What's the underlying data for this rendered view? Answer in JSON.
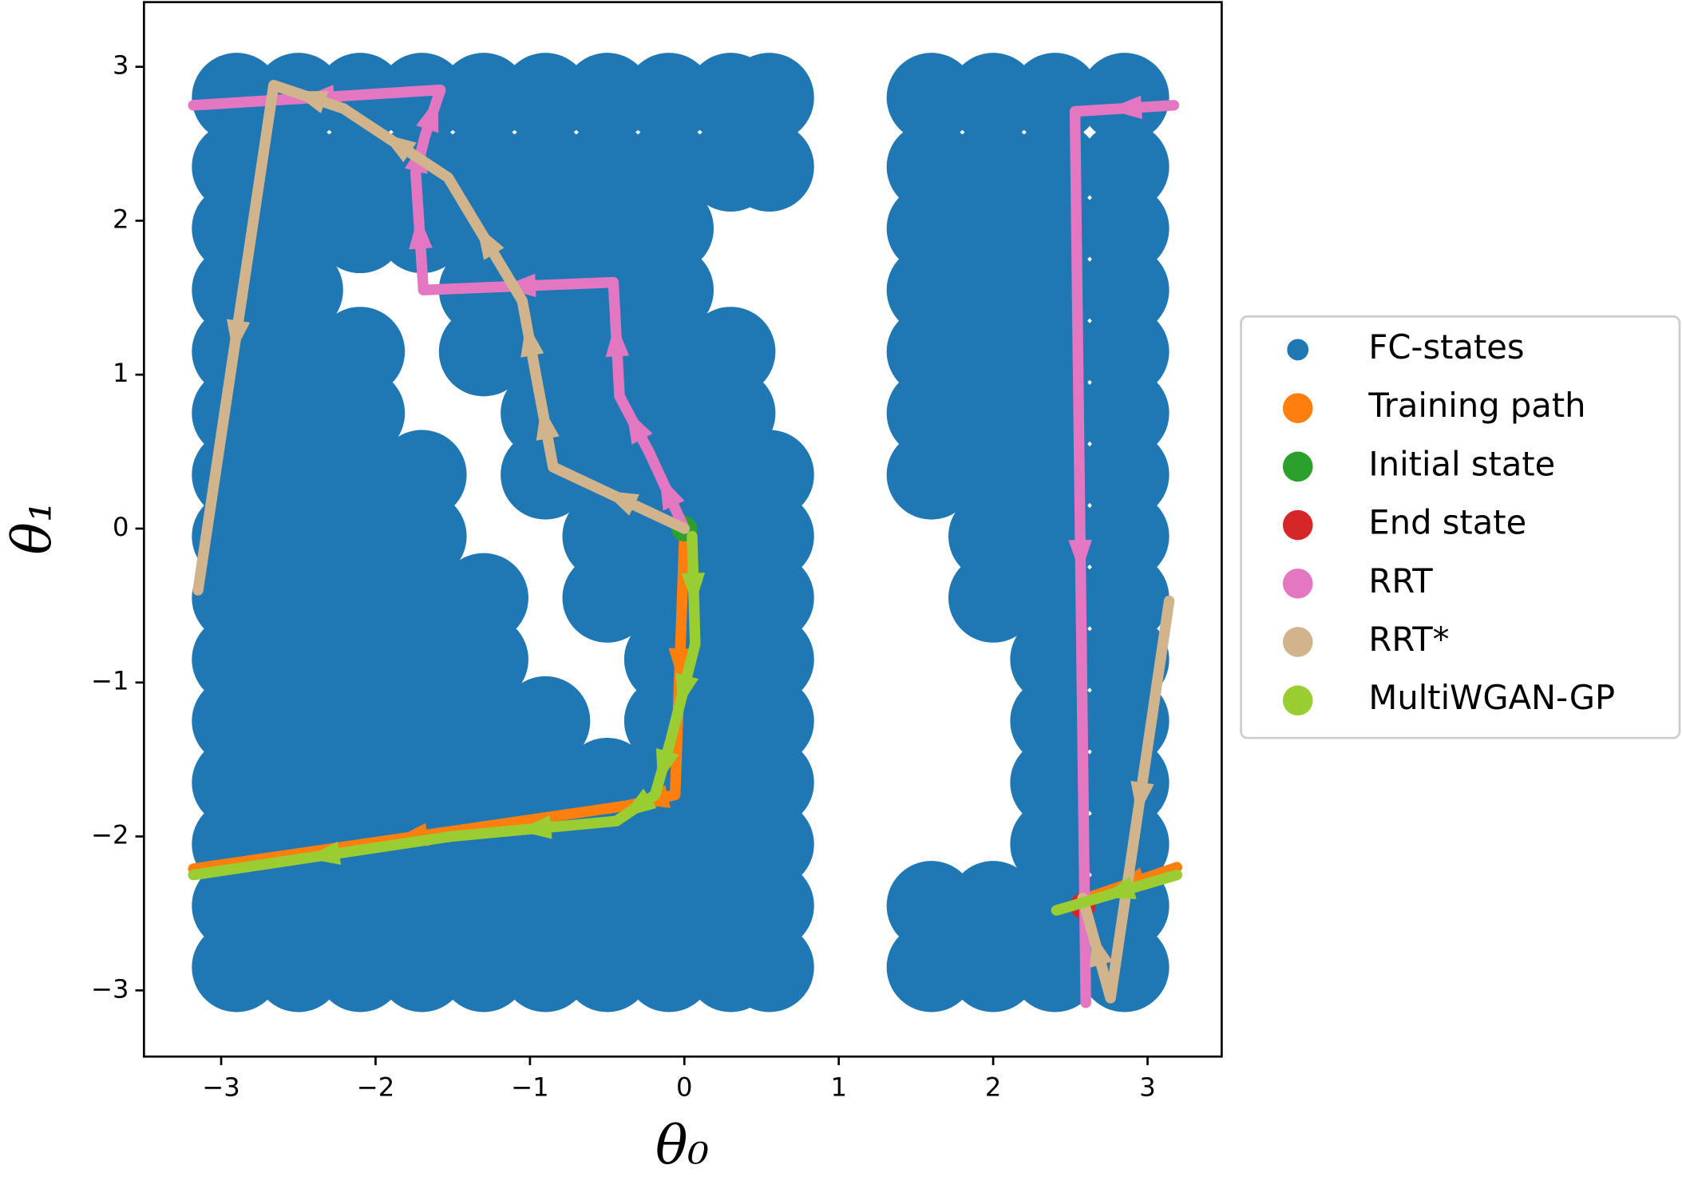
{
  "chart_data": {
    "type": "scatter",
    "xlabel": "θ₀",
    "ylabel": "θ₁",
    "xlim": [
      -3.5,
      3.48
    ],
    "ylim": [
      -3.43,
      3.42
    ],
    "xticks": [
      {
        "value": -3,
        "label": "−3"
      },
      {
        "value": -2,
        "label": "−2"
      },
      {
        "value": -1,
        "label": "−1"
      },
      0,
      1,
      2,
      3
    ],
    "yticks": [
      {
        "value": -3,
        "label": "−3"
      },
      {
        "value": -2,
        "label": "−2"
      },
      {
        "value": -1,
        "label": "−1"
      },
      0,
      1,
      2,
      3
    ],
    "grid": false,
    "legend": "outside right",
    "series": [
      {
        "name": "FC-states",
        "color": "#1f77b4",
        "mode": "markers",
        "x": [
          -2.9,
          -2.5,
          -2.1,
          -1.7,
          -1.3,
          -0.9,
          -0.5,
          -0.1,
          0.3,
          0.55,
          1.6,
          2.0,
          2.4,
          2.85,
          -2.9,
          -2.5,
          -2.1,
          -1.7,
          -1.3,
          -0.9,
          -0.5,
          -0.1,
          0.3,
          0.55,
          1.6,
          2.0,
          2.4,
          2.85,
          -2.9,
          -2.5,
          -2.1,
          -1.7,
          -1.3,
          -0.9,
          -0.5,
          -0.1,
          0.3,
          0.55,
          2.4,
          2.85,
          -2.9,
          -2.5,
          -2.1,
          -1.7,
          -1.3,
          -0.9,
          -0.5,
          -0.1,
          0.3,
          0.55,
          2.4,
          2.85,
          -2.9,
          -2.5,
          -2.1,
          -1.7,
          -1.3,
          -0.9,
          -0.1,
          0.3,
          0.55,
          2.4,
          2.85,
          -2.9,
          -2.5,
          -2.1,
          -1.7,
          -1.3,
          -0.1,
          0.3,
          0.55,
          2.4,
          2.85,
          -2.9,
          -2.5,
          -2.1,
          -1.7,
          -1.3,
          -0.5,
          -0.1,
          0.3,
          0.55,
          2.0,
          2.4,
          2.85,
          -2.9,
          -2.5,
          -2.1,
          -1.7,
          -0.5,
          -0.1,
          0.3,
          0.55,
          2.0,
          2.4,
          2.85,
          -2.9,
          -2.5,
          -2.1,
          -1.7,
          -0.9,
          -0.5,
          -0.1,
          0.3,
          0.55,
          1.6,
          2.0,
          2.4,
          2.85,
          -2.9,
          -2.5,
          -2.1,
          -0.9,
          -0.5,
          -0.1,
          0.3,
          1.6,
          2.0,
          2.4,
          2.85,
          -2.9,
          -2.5,
          -2.1,
          -1.3,
          -0.9,
          -0.5,
          -0.1,
          0.3,
          1.6,
          2.0,
          2.4,
          2.85,
          -2.9,
          -2.5,
          -1.3,
          -0.9,
          -0.5,
          -0.1,
          1.6,
          2.0,
          2.4,
          2.85,
          -2.9,
          -2.5,
          -2.1,
          -1.7,
          -1.3,
          -0.9,
          -0.5,
          -0.1,
          1.6,
          2.0,
          2.4,
          2.85,
          -2.9,
          -2.5,
          -2.1,
          -1.7,
          -1.3,
          -0.9,
          -0.5,
          -0.1,
          0.3,
          0.55,
          1.6,
          2.0,
          2.4,
          2.85,
          -2.9,
          -2.5,
          -2.1,
          -1.7,
          -1.3,
          -0.9,
          -0.5,
          -0.1,
          0.3,
          0.55,
          1.6,
          2.0,
          2.4,
          2.85
        ],
        "y": [
          -2.85,
          -2.85,
          -2.85,
          -2.85,
          -2.85,
          -2.85,
          -2.85,
          -2.85,
          -2.85,
          -2.85,
          -2.85,
          -2.85,
          -2.85,
          -2.85,
          -2.45,
          -2.45,
          -2.45,
          -2.45,
          -2.45,
          -2.45,
          -2.45,
          -2.45,
          -2.45,
          -2.45,
          -2.45,
          -2.45,
          -2.45,
          -2.45,
          -2.05,
          -2.05,
          -2.05,
          -2.05,
          -2.05,
          -2.05,
          -2.05,
          -2.05,
          -2.05,
          -2.05,
          -2.05,
          -2.05,
          -1.65,
          -1.65,
          -1.65,
          -1.65,
          -1.65,
          -1.65,
          -1.65,
          -1.65,
          -1.65,
          -1.65,
          -1.65,
          -1.65,
          -1.25,
          -1.25,
          -1.25,
          -1.25,
          -1.25,
          -1.25,
          -1.25,
          -1.25,
          -1.25,
          -1.25,
          -1.25,
          -0.85,
          -0.85,
          -0.85,
          -0.85,
          -0.85,
          -0.85,
          -0.85,
          -0.85,
          -0.85,
          -0.85,
          -0.45,
          -0.45,
          -0.45,
          -0.45,
          -0.45,
          -0.45,
          -0.45,
          -0.45,
          -0.45,
          -0.45,
          -0.45,
          -0.45,
          -0.05,
          -0.05,
          -0.05,
          -0.05,
          -0.05,
          -0.05,
          -0.05,
          -0.05,
          -0.05,
          -0.05,
          -0.05,
          0.35,
          0.35,
          0.35,
          0.35,
          0.35,
          0.35,
          0.35,
          0.35,
          0.35,
          0.35,
          0.35,
          0.35,
          0.35,
          0.75,
          0.75,
          0.75,
          0.75,
          0.75,
          0.75,
          0.75,
          0.75,
          0.75,
          0.75,
          0.75,
          1.15,
          1.15,
          1.15,
          1.15,
          1.15,
          1.15,
          1.15,
          1.15,
          1.15,
          1.15,
          1.15,
          1.15,
          1.55,
          1.55,
          1.55,
          1.55,
          1.55,
          1.55,
          1.55,
          1.55,
          1.55,
          1.55,
          1.95,
          1.95,
          1.95,
          1.95,
          1.95,
          1.95,
          1.95,
          1.95,
          1.95,
          1.95,
          1.95,
          1.95,
          2.35,
          2.35,
          2.35,
          2.35,
          2.35,
          2.35,
          2.35,
          2.35,
          2.35,
          2.35,
          2.35,
          2.35,
          2.35,
          2.35,
          2.8,
          2.8,
          2.8,
          2.8,
          2.8,
          2.8,
          2.8,
          2.8,
          2.8,
          2.8,
          2.8,
          2.8,
          2.8,
          2.8
        ]
      },
      {
        "name": "Training path",
        "color": "#ff7f0e",
        "mode": "lines",
        "x": [
          0,
          -0.06,
          -0.37,
          -3.18,
          null,
          3.19,
          2.55
        ],
        "y": [
          -0.05,
          -1.73,
          -1.8,
          -2.21,
          null,
          -2.2,
          -2.42
        ]
      },
      {
        "name": "Initial state",
        "color": "#2ca02c",
        "mode": "markers",
        "x": [
          0
        ],
        "y": [
          0
        ]
      },
      {
        "name": "End state",
        "color": "#d62728",
        "mode": "markers",
        "x": [
          2.58
        ],
        "y": [
          -2.45
        ]
      },
      {
        "name": "RRT",
        "color": "#e377c2",
        "mode": "lines",
        "x": [
          0,
          -0.23,
          -0.42,
          -0.46,
          -1.69,
          -1.74,
          -1.68,
          -1.58,
          -3.18,
          null,
          3.17,
          2.53,
          2.6
        ],
        "y": [
          0,
          0.5,
          0.86,
          1.6,
          1.55,
          2.31,
          2.55,
          2.85,
          2.75,
          null,
          2.75,
          2.71,
          -3.08
        ]
      },
      {
        "name": "RRT*",
        "color": "#d2b48c",
        "mode": "lines",
        "x": [
          0,
          -0.85,
          -0.96,
          -1.05,
          -1.53,
          -2.21,
          -2.66,
          -3.15,
          null,
          3.14,
          2.76,
          2.58
        ],
        "y": [
          0,
          0.4,
          0.99,
          1.48,
          2.28,
          2.73,
          2.88,
          -0.4,
          null,
          -0.47,
          -3.05,
          -2.4
        ]
      },
      {
        "name": "MultiWGAN-GP",
        "color": "#9acd32",
        "mode": "lines",
        "x": [
          0.05,
          0.07,
          -0.09,
          -0.19,
          -0.44,
          -1.51,
          -3.18,
          null,
          3.19,
          2.41
        ],
        "y": [
          -0.05,
          -0.75,
          -1.38,
          -1.73,
          -1.9,
          -2.0,
          -2.25,
          null,
          -2.25,
          -2.48
        ]
      }
    ]
  }
}
